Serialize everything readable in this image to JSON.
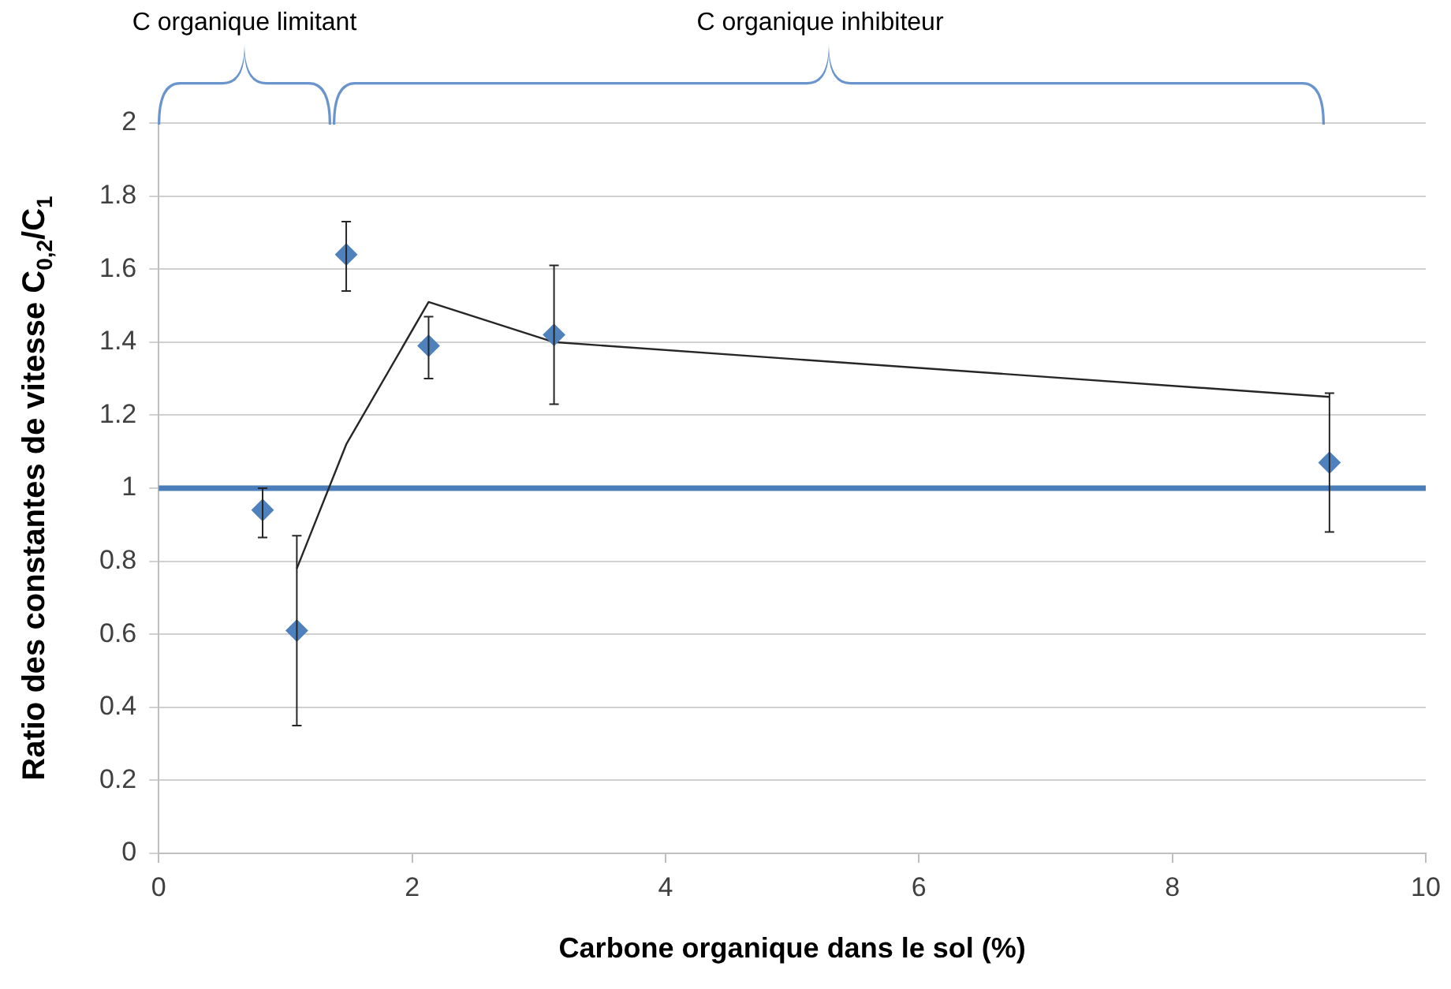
{
  "chart_data": {
    "type": "scatter",
    "xlabel": "Carbone organique dans le sol (%)",
    "ylabel": "Ratio des constantes de vitesse C$_{0,2}$/C$_{1}$",
    "xlim": [
      0,
      10
    ],
    "xticks": [
      0,
      2,
      4,
      6,
      8,
      10
    ],
    "ylim": [
      0,
      2
    ],
    "yticks": [
      0,
      0.2,
      0.4,
      0.6,
      0.8,
      1,
      1.2,
      1.4,
      1.6,
      1.8,
      2
    ],
    "grid": "y",
    "legend": false,
    "marker": "diamond",
    "series": [
      {
        "color": "#4f81bd",
        "x": [
          0.82,
          1.09,
          1.48,
          2.13,
          3.12,
          9.24
        ],
        "values": [
          0.94,
          0.61,
          1.64,
          1.39,
          1.42,
          1.07
        ],
        "errors": [
          [
            0.865,
            1.0
          ],
          [
            0.35,
            0.87
          ],
          [
            1.54,
            1.73
          ],
          [
            1.3,
            1.47
          ],
          [
            1.23,
            1.61
          ],
          [
            0.88,
            1.26
          ]
        ]
      },
      {
        "type": "line",
        "color": "#262626",
        "marker": "none",
        "x": [
          1.09,
          1.48,
          2.13,
          3.12,
          9.24
        ],
        "values": [
          0.78,
          1.12,
          1.51,
          1.4,
          1.25
        ]
      }
    ],
    "ref_lines": [
      {
        "axis": "y",
        "value": 1,
        "color": "#4a7ebb"
      }
    ],
    "annotations": [
      "C organique limitant",
      "C organique inhibiteur"
    ]
  }
}
